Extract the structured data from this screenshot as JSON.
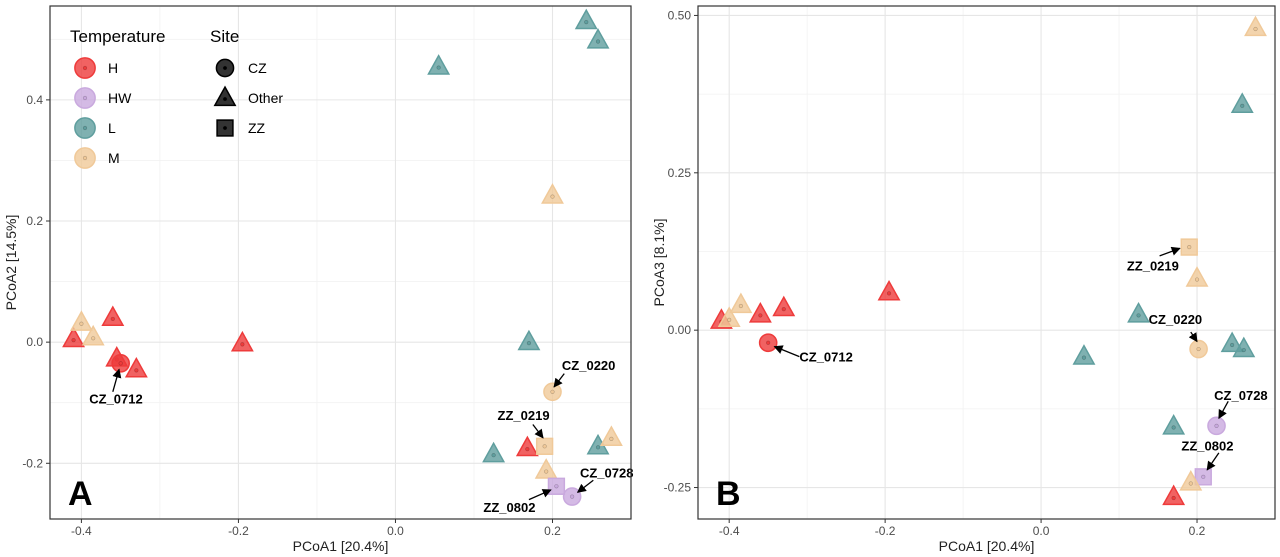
{
  "colors": {
    "H": "#ee3b3b",
    "HW": "#c9a9de",
    "L": "#5f9e9e",
    "M": "#f0c999"
  },
  "legend": {
    "temperature_title": "Temperature",
    "temperature_items": [
      {
        "key": "H",
        "label": "H"
      },
      {
        "key": "HW",
        "label": "HW"
      },
      {
        "key": "L",
        "label": "L"
      },
      {
        "key": "M",
        "label": "M"
      }
    ],
    "site_title": "Site",
    "site_items": [
      {
        "shape": "circle",
        "label": "CZ"
      },
      {
        "shape": "triangle",
        "label": "Other"
      },
      {
        "shape": "square",
        "label": "ZZ"
      }
    ]
  },
  "chart_data": [
    {
      "panel": "A",
      "type": "scatter",
      "xlabel": "PCoA1 [20.4%]",
      "ylabel": "PCoA2 [14.5%]",
      "xlim": [
        -0.44,
        0.3
      ],
      "ylim": [
        -0.292,
        0.555
      ],
      "xticks": [
        -0.4,
        -0.2,
        0.0,
        0.2
      ],
      "xtick_labels": [
        "-0.4",
        "-0.2",
        "0.0",
        "0.2"
      ],
      "yticks": [
        -0.2,
        0.0,
        0.2,
        0.4
      ],
      "ytick_labels": [
        "-0.2",
        "0.0",
        "0.2",
        "0.4"
      ],
      "grid": true,
      "points": [
        {
          "x": -0.41,
          "y": 0.005,
          "temp": "H",
          "site": "Other"
        },
        {
          "x": -0.36,
          "y": 0.04,
          "temp": "H",
          "site": "Other"
        },
        {
          "x": -0.355,
          "y": -0.027,
          "temp": "H",
          "site": "Other"
        },
        {
          "x": -0.33,
          "y": -0.045,
          "temp": "H",
          "site": "Other"
        },
        {
          "x": -0.195,
          "y": -0.002,
          "temp": "H",
          "site": "Other"
        },
        {
          "x": -0.4,
          "y": 0.032,
          "temp": "M",
          "site": "Other"
        },
        {
          "x": -0.385,
          "y": 0.008,
          "temp": "M",
          "site": "Other"
        },
        {
          "x": -0.35,
          "y": -0.035,
          "temp": "H",
          "site": "CZ"
        },
        {
          "x": 0.055,
          "y": 0.455,
          "temp": "L",
          "site": "Other"
        },
        {
          "x": 0.243,
          "y": 0.53,
          "temp": "L",
          "site": "Other"
        },
        {
          "x": 0.258,
          "y": 0.498,
          "temp": "L",
          "site": "Other"
        },
        {
          "x": 0.2,
          "y": 0.242,
          "temp": "M",
          "site": "Other"
        },
        {
          "x": 0.17,
          "y": -0.0,
          "temp": "L",
          "site": "Other"
        },
        {
          "x": 0.2,
          "y": -0.082,
          "temp": "M",
          "site": "CZ"
        },
        {
          "x": 0.125,
          "y": -0.185,
          "temp": "L",
          "site": "Other"
        },
        {
          "x": 0.168,
          "y": -0.175,
          "temp": "H",
          "site": "Other"
        },
        {
          "x": 0.19,
          "y": -0.172,
          "temp": "M",
          "site": "ZZ"
        },
        {
          "x": 0.258,
          "y": -0.172,
          "temp": "L",
          "site": "Other"
        },
        {
          "x": 0.275,
          "y": -0.158,
          "temp": "M",
          "site": "Other"
        },
        {
          "x": 0.192,
          "y": -0.212,
          "temp": "M",
          "site": "Other"
        },
        {
          "x": 0.205,
          "y": -0.238,
          "temp": "HW",
          "site": "ZZ"
        },
        {
          "x": 0.225,
          "y": -0.255,
          "temp": "HW",
          "site": "CZ"
        }
      ],
      "annotations": [
        {
          "text": "CZ_0712",
          "x": -0.39,
          "y": -0.093,
          "ax": -0.36,
          "ay": -0.082,
          "px": -0.352,
          "py": -0.045
        },
        {
          "text": "CZ_0220",
          "x": 0.212,
          "y": -0.038,
          "ax": 0.215,
          "ay": -0.052,
          "px": 0.202,
          "py": -0.074
        },
        {
          "text": "ZZ_0219",
          "x": 0.13,
          "y": -0.12,
          "ax": 0.175,
          "ay": -0.136,
          "px": 0.188,
          "py": -0.158
        },
        {
          "text": "CZ_0728",
          "x": 0.235,
          "y": -0.215,
          "ax": 0.252,
          "ay": -0.228,
          "px": 0.232,
          "py": -0.248
        },
        {
          "text": "ZZ_0802",
          "x": 0.112,
          "y": -0.272,
          "ax": 0.17,
          "ay": -0.26,
          "px": 0.198,
          "py": -0.244
        }
      ],
      "panel_label": "A"
    },
    {
      "panel": "B",
      "type": "scatter",
      "xlabel": "PCoA1 [20.4%]",
      "ylabel": "PCoA3 [8.1%]",
      "xlim": [
        -0.44,
        0.3
      ],
      "ylim": [
        -0.3,
        0.515
      ],
      "xticks": [
        -0.4,
        -0.2,
        0.0,
        0.2
      ],
      "xtick_labels": [
        "-0.4",
        "-0.2",
        "0.0",
        "0.2"
      ],
      "yticks": [
        -0.25,
        0.0,
        0.25,
        0.5
      ],
      "ytick_labels": [
        "-0.25",
        "0.00",
        "0.25",
        "0.50"
      ],
      "grid": true,
      "points": [
        {
          "x": -0.41,
          "y": 0.015,
          "temp": "H",
          "site": "Other"
        },
        {
          "x": -0.36,
          "y": 0.025,
          "temp": "H",
          "site": "Other"
        },
        {
          "x": -0.33,
          "y": 0.035,
          "temp": "H",
          "site": "Other"
        },
        {
          "x": -0.195,
          "y": 0.06,
          "temp": "H",
          "site": "Other"
        },
        {
          "x": -0.4,
          "y": 0.018,
          "temp": "M",
          "site": "Other"
        },
        {
          "x": -0.385,
          "y": 0.04,
          "temp": "M",
          "site": "Other"
        },
        {
          "x": -0.35,
          "y": -0.02,
          "temp": "H",
          "site": "CZ"
        },
        {
          "x": 0.275,
          "y": 0.48,
          "temp": "M",
          "site": "Other"
        },
        {
          "x": 0.258,
          "y": 0.358,
          "temp": "L",
          "site": "Other"
        },
        {
          "x": 0.19,
          "y": 0.132,
          "temp": "M",
          "site": "ZZ"
        },
        {
          "x": 0.2,
          "y": 0.082,
          "temp": "M",
          "site": "Other"
        },
        {
          "x": 0.125,
          "y": 0.025,
          "temp": "L",
          "site": "Other"
        },
        {
          "x": 0.055,
          "y": -0.042,
          "temp": "L",
          "site": "Other"
        },
        {
          "x": 0.202,
          "y": -0.03,
          "temp": "M",
          "site": "CZ"
        },
        {
          "x": 0.245,
          "y": -0.022,
          "temp": "L",
          "site": "Other"
        },
        {
          "x": 0.26,
          "y": -0.03,
          "temp": "L",
          "site": "Other"
        },
        {
          "x": 0.17,
          "y": -0.153,
          "temp": "L",
          "site": "Other"
        },
        {
          "x": 0.225,
          "y": -0.152,
          "temp": "HW",
          "site": "CZ"
        },
        {
          "x": 0.208,
          "y": -0.233,
          "temp": "HW",
          "site": "ZZ"
        },
        {
          "x": 0.192,
          "y": -0.242,
          "temp": "M",
          "site": "Other"
        },
        {
          "x": 0.17,
          "y": -0.265,
          "temp": "H",
          "site": "Other"
        }
      ],
      "annotations": [
        {
          "text": "CZ_0712",
          "x": -0.31,
          "y": -0.042,
          "ax": -0.31,
          "ay": -0.042,
          "px": -0.342,
          "py": -0.026
        },
        {
          "text": "ZZ_0219",
          "x": 0.11,
          "y": 0.103,
          "ax": 0.152,
          "ay": 0.118,
          "px": 0.178,
          "py": 0.13
        },
        {
          "text": "CZ_0220",
          "x": 0.138,
          "y": 0.018,
          "ax": 0.192,
          "ay": -0.003,
          "px": 0.2,
          "py": -0.018
        },
        {
          "text": "CZ_0728",
          "x": 0.222,
          "y": -0.103,
          "ax": 0.24,
          "ay": -0.113,
          "px": 0.228,
          "py": -0.14
        },
        {
          "text": "ZZ_0802",
          "x": 0.18,
          "y": -0.183,
          "ax": 0.228,
          "ay": -0.195,
          "px": 0.213,
          "py": -0.222
        }
      ],
      "panel_label": "B"
    }
  ]
}
